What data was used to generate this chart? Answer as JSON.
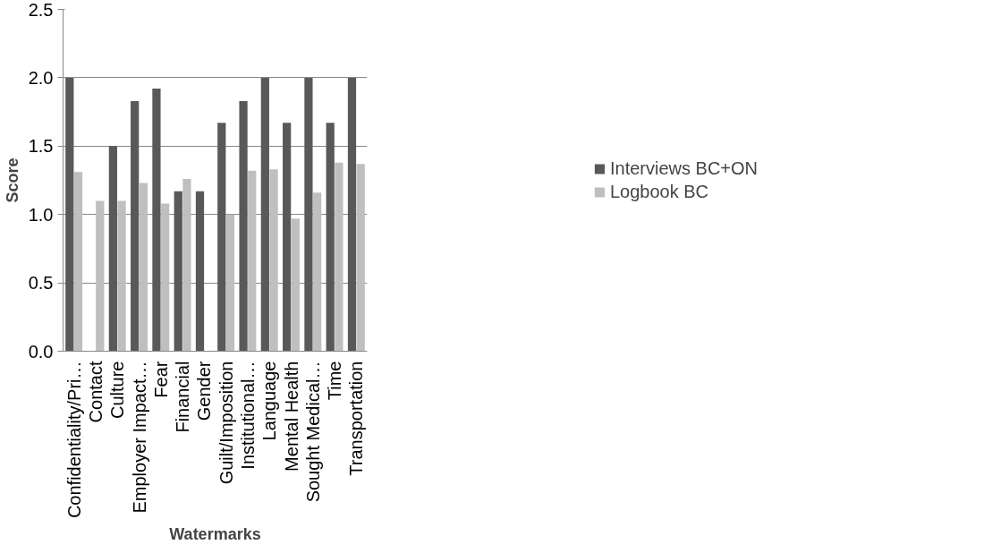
{
  "chart_data": {
    "type": "bar",
    "xlabel": "Watermarks",
    "ylabel": "Score",
    "categories": [
      "Confidentiality/Pri…",
      "Contact",
      "Culture",
      "Employer Impact…",
      "Fear",
      "Financial",
      "Gender",
      "Guilt/Imposition",
      "Institutional…",
      "Language",
      "Mental Health",
      "Sought Medical…",
      "Time",
      "Transportation"
    ],
    "series": [
      {
        "name": "Interviews BC+ON",
        "color": "#595959",
        "values": [
          2.0,
          null,
          1.5,
          1.83,
          1.92,
          1.17,
          1.17,
          1.67,
          1.83,
          2.0,
          1.67,
          2.0,
          1.67,
          2.0
        ]
      },
      {
        "name": "Logbook BC",
        "color": "#bfbfbf",
        "values": [
          1.31,
          1.1,
          1.1,
          1.23,
          1.08,
          1.26,
          null,
          1.0,
          1.32,
          1.33,
          0.97,
          1.16,
          1.38,
          1.37
        ]
      }
    ],
    "ylim": [
      0,
      2.5
    ],
    "yticks": [
      {
        "value": 0,
        "label": "0.0"
      },
      {
        "value": 0.5,
        "label": "0.5"
      },
      {
        "value": 1,
        "label": "1.0"
      },
      {
        "value": 1.5,
        "label": "1.5"
      },
      {
        "value": 2,
        "label": "2.0"
      },
      {
        "value": 2.5,
        "label": "2.5"
      }
    ],
    "grid": "y",
    "legend": "right"
  }
}
